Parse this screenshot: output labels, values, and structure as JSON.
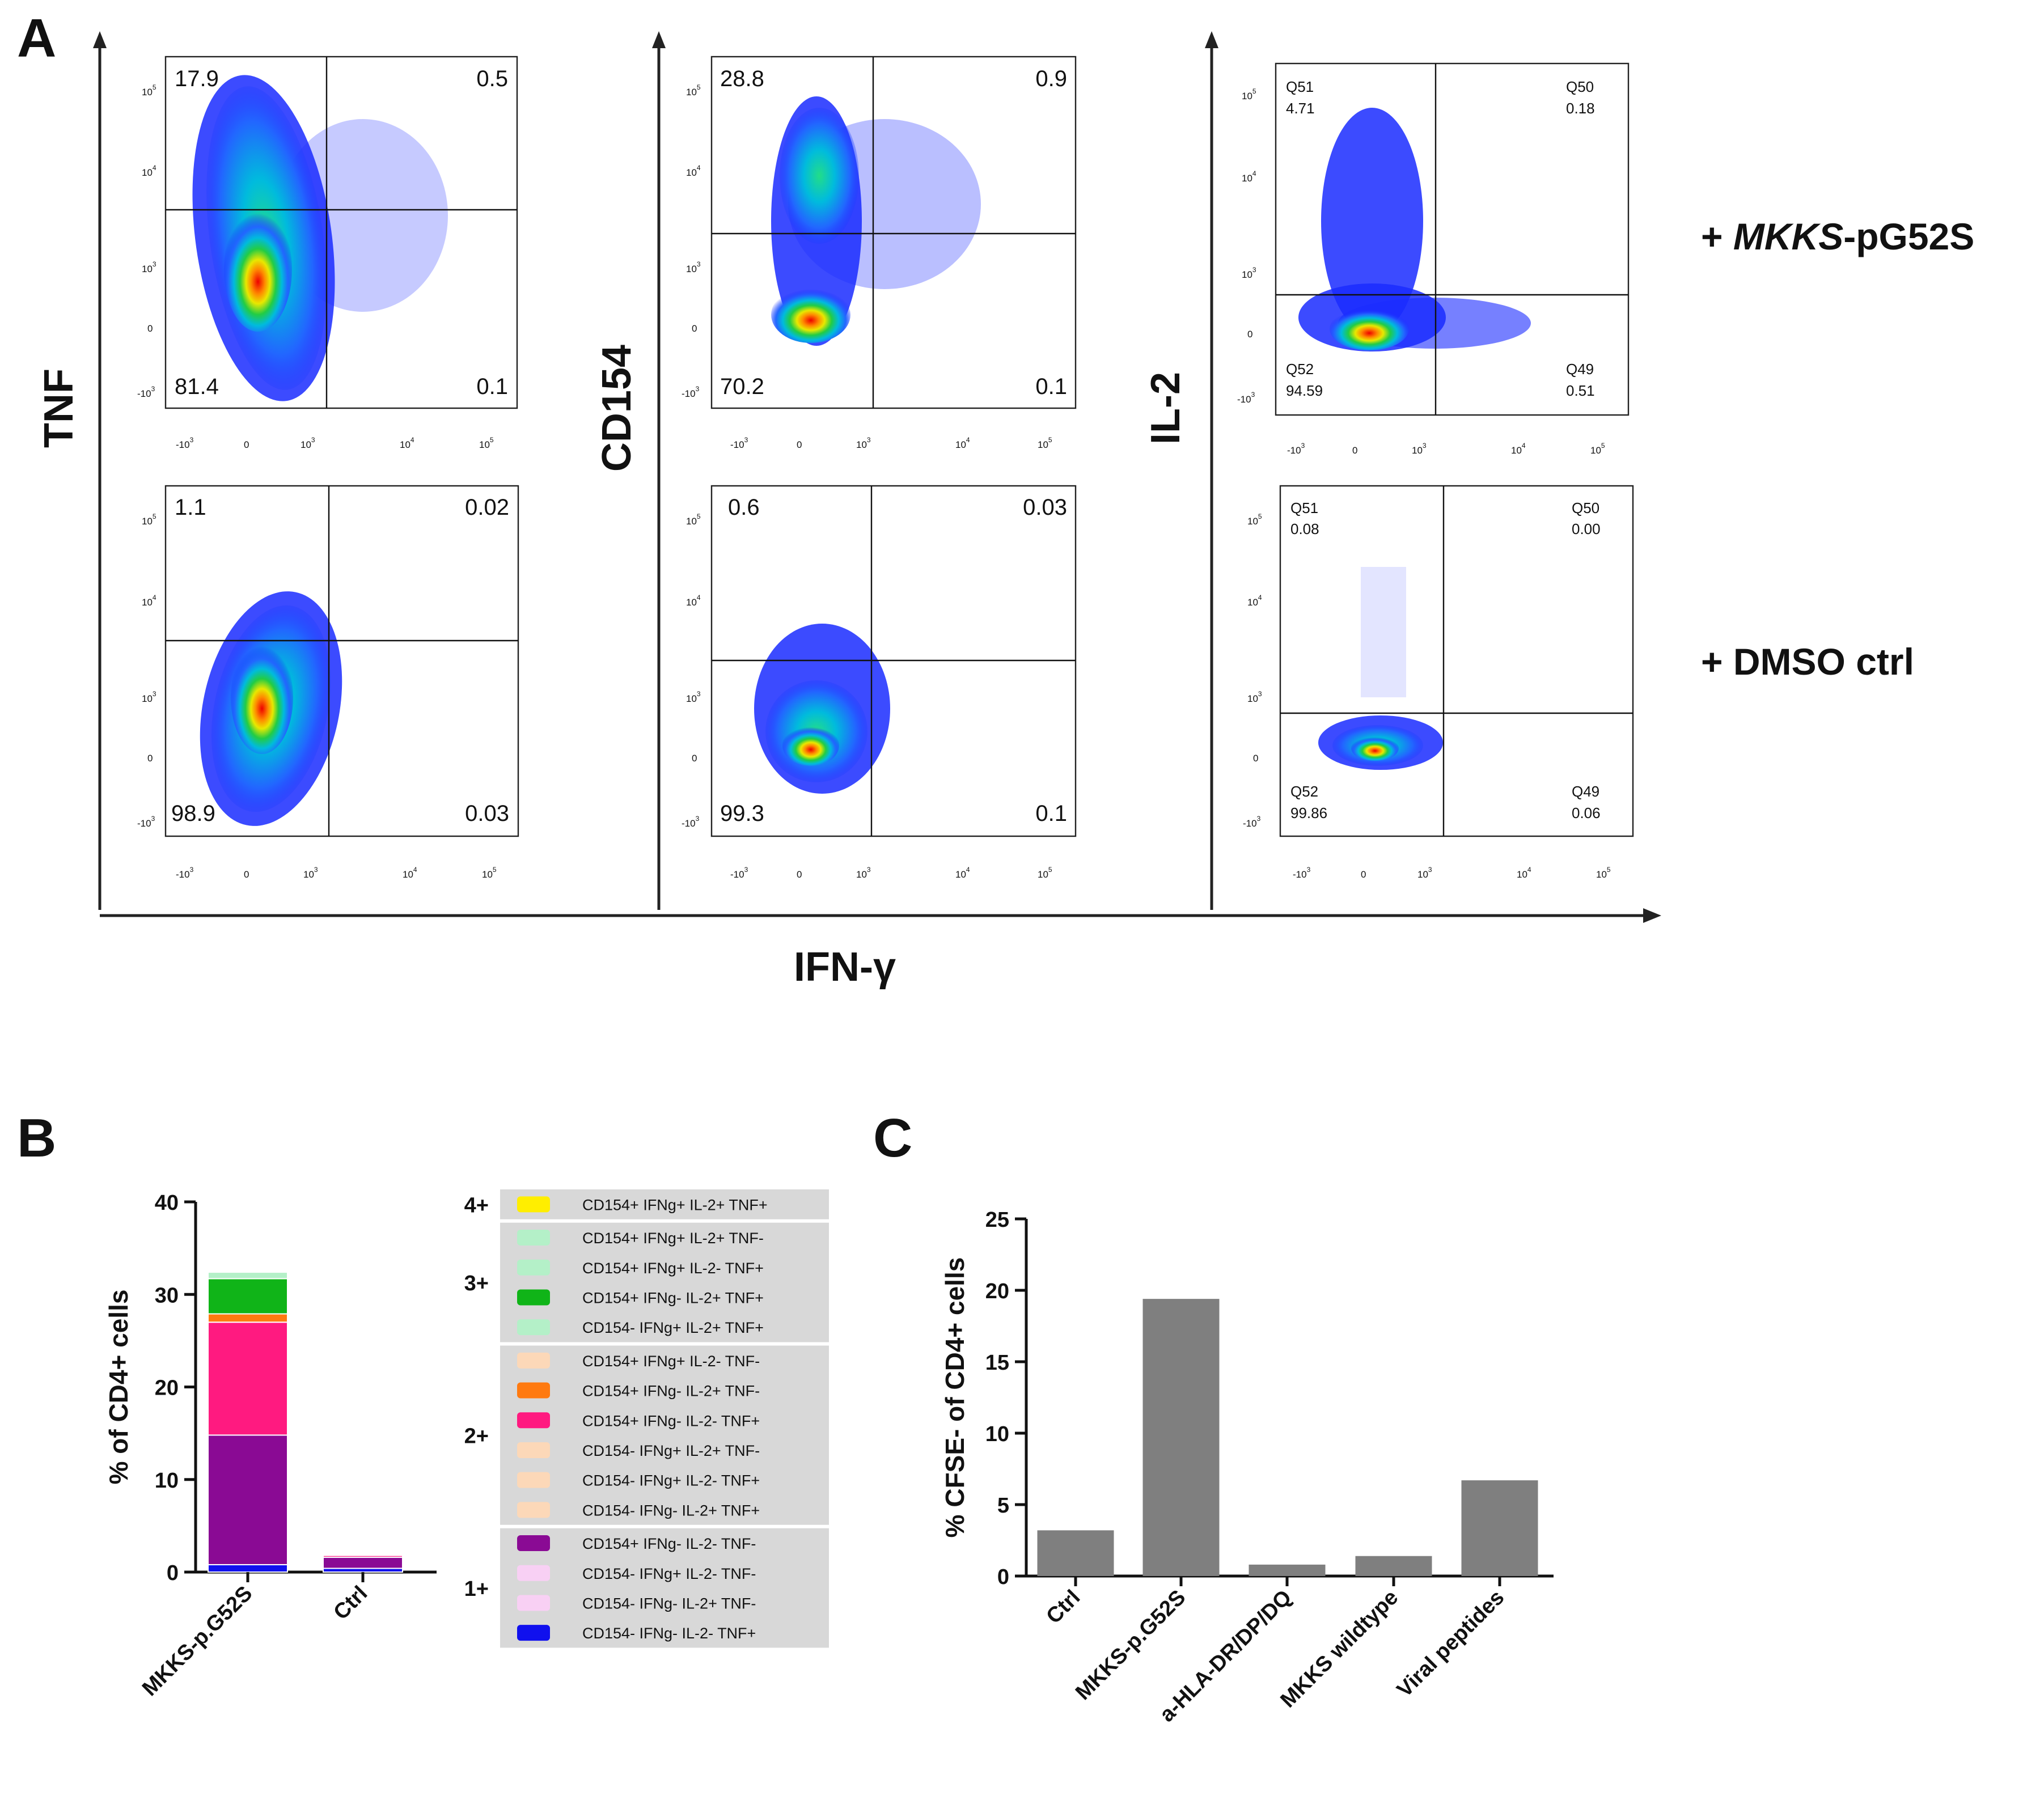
{
  "panel_labels": {
    "a": "A",
    "b": "B",
    "c": "C"
  },
  "flow": {
    "y_axis_labels": [
      "TNF",
      "CD154",
      "IL-2"
    ],
    "x_axis_label": "IFN-γ",
    "row_labels": {
      "top": {
        "prefix": "+ ",
        "gene": "MKKS",
        "suffix": "-pG52S"
      },
      "bottom": "+ DMSO ctrl"
    },
    "tick_labels": {
      "pow": [
        "10",
        "10",
        "10",
        "0",
        "-10"
      ],
      "exp": [
        "5",
        "4",
        "3",
        "3"
      ],
      "x": [
        "-10",
        "0",
        "10",
        "10",
        "10"
      ],
      "x_exp": [
        "3",
        "3",
        "4",
        "5"
      ]
    },
    "plots": [
      {
        "ul": "17.9",
        "ur": "0.5",
        "ll": "81.4",
        "lr": "0.1"
      },
      {
        "ul": "28.8",
        "ur": "0.9",
        "ll": "70.2",
        "lr": "0.1"
      },
      {
        "ul_name": "Q51",
        "ul": "4.71",
        "ur_name": "Q50",
        "ur": "0.18",
        "ll_name": "Q52",
        "ll": "94.59",
        "lr_name": "Q49",
        "lr": "0.51"
      },
      {
        "ul": "1.1",
        "ur": "0.02",
        "ll": "98.9",
        "lr": "0.03"
      },
      {
        "ul": "0.6",
        "ur": "0.03",
        "ll": "99.3",
        "lr": "0.1"
      },
      {
        "ul_name": "Q51",
        "ul": "0.08",
        "ur_name": "Q50",
        "ur": "0.00",
        "ll_name": "Q52",
        "ll": "99.86",
        "lr_name": "Q49",
        "lr": "0.06"
      }
    ]
  },
  "chart_data": [
    {
      "type": "bar",
      "stacked": true,
      "title": "",
      "ylabel": "% of CD4+ cells",
      "xlabel": "",
      "ylim": [
        0,
        40
      ],
      "yticks": [
        "0",
        "10",
        "20",
        "30",
        "40"
      ],
      "categories": [
        "MKKS-p.G52S",
        "Ctrl"
      ],
      "series": [
        {
          "name": "CD154- IFNg- IL-2- TNF+",
          "color": "#1010ee",
          "values": [
            0.8,
            0.4
          ]
        },
        {
          "name": "CD154+ IFNg- IL-2- TNF-",
          "color": "#8a0a94",
          "values": [
            14.0,
            1.2
          ]
        },
        {
          "name": "CD154+ IFNg- IL-2- TNF+",
          "color": "#ff1a80",
          "values": [
            12.2,
            0.2
          ]
        },
        {
          "name": "CD154+ IFNg- IL-2+ TNF-",
          "color": "#ff7a10",
          "values": [
            0.9,
            0
          ]
        },
        {
          "name": "CD154+ IFNg- IL-2+ TNF+",
          "color": "#10b418",
          "values": [
            3.8,
            0.1
          ]
        },
        {
          "name": "CD154+ IFNg+ IL-2- TNF+",
          "color": "#b4f0c8",
          "values": [
            0.7,
            0.1
          ]
        }
      ],
      "legend": {
        "groups": [
          {
            "label": "4+",
            "entries": [
              {
                "text": "CD154+ IFNg+ IL-2+ TNF+",
                "color": "#ffee00"
              }
            ]
          },
          {
            "label": "3+",
            "entries": [
              {
                "text": "CD154+ IFNg+ IL-2+ TNF-",
                "color": "#b4f0c8"
              },
              {
                "text": "CD154+ IFNg+ IL-2- TNF+",
                "color": "#b4f0c8"
              },
              {
                "text": "CD154+ IFNg- IL-2+ TNF+",
                "color": "#10b418"
              },
              {
                "text": "CD154- IFNg+ IL-2+ TNF+",
                "color": "#b4f0c8"
              }
            ]
          },
          {
            "label": "2+",
            "entries": [
              {
                "text": "CD154+ IFNg+ IL-2- TNF-",
                "color": "#fcd8b8"
              },
              {
                "text": "CD154+ IFNg- IL-2+ TNF-",
                "color": "#ff7a10"
              },
              {
                "text": "CD154+ IFNg- IL-2- TNF+",
                "color": "#ff1a80"
              },
              {
                "text": "CD154- IFNg+ IL-2+ TNF-",
                "color": "#fcd8b8"
              },
              {
                "text": "CD154- IFNg+ IL-2- TNF+",
                "color": "#fcd8b8"
              },
              {
                "text": "CD154- IFNg- IL-2+ TNF+",
                "color": "#fcd8b8"
              }
            ]
          },
          {
            "label": "1+",
            "entries": [
              {
                "text": "CD154+ IFNg- IL-2- TNF-",
                "color": "#8a0a94"
              },
              {
                "text": "CD154- IFNg+ IL-2- TNF-",
                "color": "#f8d0f4"
              },
              {
                "text": "CD154- IFNg- IL-2+ TNF-",
                "color": "#f8d0f4"
              },
              {
                "text": "CD154- IFNg- IL-2- TNF+",
                "color": "#1010ee"
              }
            ]
          }
        ]
      }
    },
    {
      "type": "bar",
      "title": "",
      "ylabel": "% CFSE- of CD4+ cells",
      "xlabel": "",
      "ylim": [
        0,
        25
      ],
      "yticks": [
        "0",
        "5",
        "10",
        "15",
        "20",
        "25"
      ],
      "categories": [
        "Ctrl",
        "MKKS-p.G52S",
        "a-HLA-DR/DP/DQ",
        "MKKS wildtype",
        "Viral peptides"
      ],
      "values": [
        3.2,
        19.4,
        0.8,
        1.4,
        6.7
      ],
      "color": "#7f7f7f"
    }
  ]
}
